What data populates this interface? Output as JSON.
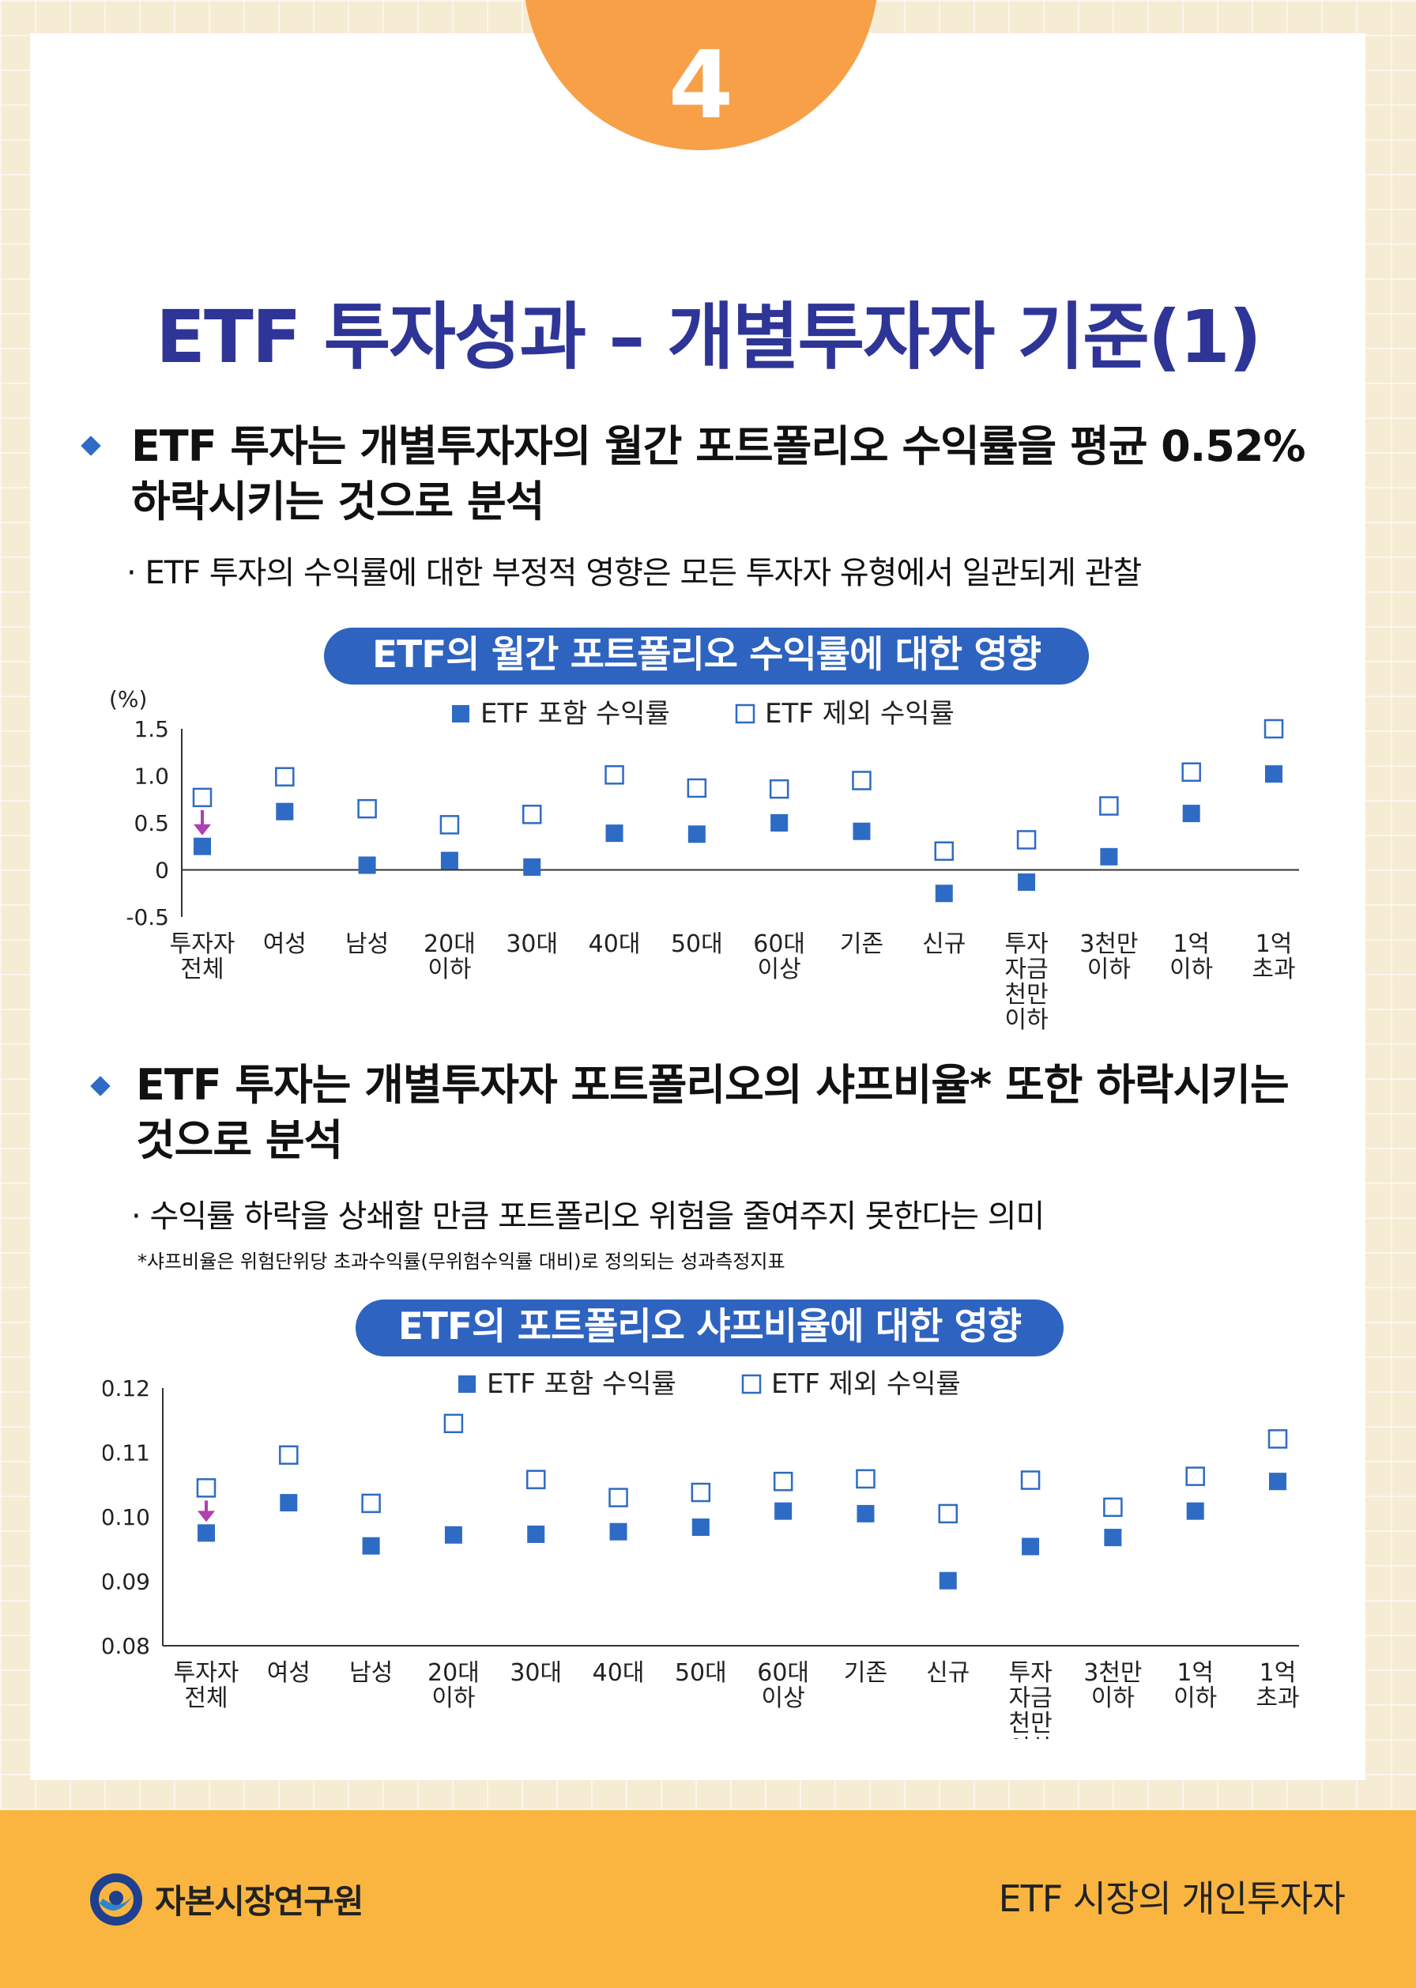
{
  "page": {
    "number": "4",
    "title": "ETF 투자성과 – 개별투자자 기준(1)"
  },
  "section1": {
    "heading_line1": "ETF 투자는 개별투자자의 월간 포트폴리오 수익률을 평균 0.52%",
    "heading_line2": "하락시키는 것으로 분석",
    "sub": "ETF 투자의 수익률에 대한 부정적 영향은 모든 투자자 유형에서 일관되게 관찰",
    "chart_title": "ETF의 월간 포트폴리오 수익률에 대한 영향"
  },
  "section2": {
    "heading_line1": "ETF 투자는 개별투자자 포트폴리오의 샤프비율* 또한 하락시키는",
    "heading_line2": "것으로 분석",
    "sub": "수익률 하락을 상쇄할 만큼 포트폴리오 위험을 줄여주지 못한다는 의미",
    "note": "*샤프비율은 위험단위당 초과수익률(무위험수익률 대비)로 정의되는 성과측정지표",
    "chart_title": "ETF의 포트폴리오 샤프비율에 대한 영향"
  },
  "colors": {
    "title": "#2e3597",
    "accent": "#2e63c0",
    "marker": "#2e6bc4",
    "arrow": "#b03fb0",
    "badge": "#f7a048",
    "footer": "#f9b540"
  },
  "chart_data": [
    {
      "type": "scatter",
      "unit_label": "(%)",
      "categories": [
        "투자자\n전체",
        "여성",
        "남성",
        "20대\n이하",
        "30대",
        "40대",
        "50대",
        "60대\n이상",
        "기존",
        "신규",
        "투자\n자금\n천만\n이하",
        "3천만\n이하",
        "1억\n이하",
        "1억\n초과"
      ],
      "series": [
        {
          "name": "ETF 포함 수익률",
          "marker": "filled-square",
          "values": [
            0.25,
            0.62,
            0.05,
            0.1,
            0.03,
            0.39,
            0.38,
            0.5,
            0.41,
            -0.25,
            -0.13,
            0.14,
            0.6,
            1.02
          ]
        },
        {
          "name": "ETF 제외 수익률",
          "marker": "open-square",
          "values": [
            0.77,
            0.99,
            0.65,
            0.48,
            0.59,
            1.01,
            0.87,
            0.86,
            0.95,
            0.2,
            0.32,
            0.68,
            1.04,
            1.5
          ]
        }
      ],
      "yticks": [
        "1.5",
        "1.0",
        "0.5",
        "0",
        "-0.5"
      ],
      "ytick_values": [
        1.5,
        1.0,
        0.5,
        0,
        -0.5
      ],
      "ylim": [
        -0.5,
        1.5
      ],
      "zero_line": true,
      "annotation": "arrow-down on first category",
      "legend_position": "top-center"
    },
    {
      "type": "scatter",
      "categories": [
        "투자자\n전체",
        "여성",
        "남성",
        "20대\n이하",
        "30대",
        "40대",
        "50대",
        "60대\n이상",
        "기존",
        "신규",
        "투자\n자금\n천만\n이하",
        "3천만\n이하",
        "1억\n이하",
        "1억\n초과"
      ],
      "series": [
        {
          "name": "ETF 포함 수익률",
          "marker": "filled-square",
          "values": [
            0.0975,
            0.1022,
            0.0955,
            0.0972,
            0.0973,
            0.0977,
            0.0984,
            0.1009,
            0.1005,
            0.0901,
            0.0954,
            0.0968,
            0.1009,
            0.1055
          ]
        },
        {
          "name": "ETF 제외 수익률",
          "marker": "open-square",
          "values": [
            0.1045,
            0.1096,
            0.1021,
            0.1145,
            0.1058,
            0.103,
            0.1038,
            0.1055,
            0.1059,
            0.1005,
            0.1057,
            0.1015,
            0.1063,
            0.1121
          ]
        }
      ],
      "yticks": [
        "0.12",
        "0.11",
        "0.10",
        "0.09",
        "0.08"
      ],
      "ytick_values": [
        0.12,
        0.11,
        0.1,
        0.09,
        0.08
      ],
      "ylim": [
        0.08,
        0.12
      ],
      "zero_line": false,
      "annotation": "arrow-down on first category",
      "legend_position": "top-center"
    }
  ],
  "footer": {
    "org": "자본시장연구원",
    "right_text": "ETF 시장의 개인투자자"
  }
}
